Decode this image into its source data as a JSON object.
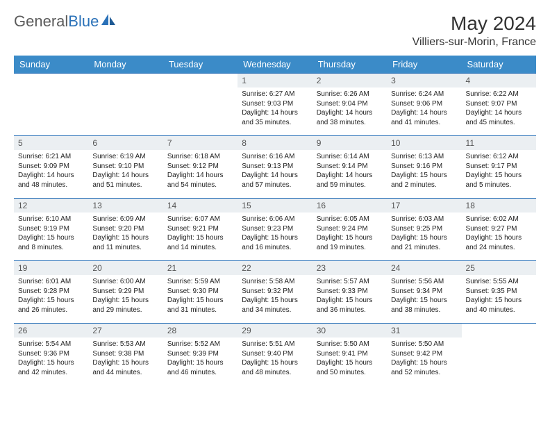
{
  "brand": {
    "part1": "General",
    "part2": "Blue"
  },
  "title": "May 2024",
  "location": "Villiers-sur-Morin, France",
  "colors": {
    "header_bg": "#3b8bc8",
    "header_text": "#ffffff",
    "daynum_bg": "#ebeff2",
    "border": "#2a71b8",
    "logo_gray": "#5b5b5b",
    "logo_blue": "#2a71b8"
  },
  "weekdays": [
    "Sunday",
    "Monday",
    "Tuesday",
    "Wednesday",
    "Thursday",
    "Friday",
    "Saturday"
  ],
  "weeks": [
    [
      {
        "day": "",
        "lines": [
          "",
          "",
          "",
          ""
        ]
      },
      {
        "day": "",
        "lines": [
          "",
          "",
          "",
          ""
        ]
      },
      {
        "day": "",
        "lines": [
          "",
          "",
          "",
          ""
        ]
      },
      {
        "day": "1",
        "lines": [
          "Sunrise: 6:27 AM",
          "Sunset: 9:03 PM",
          "Daylight: 14 hours",
          "and 35 minutes."
        ]
      },
      {
        "day": "2",
        "lines": [
          "Sunrise: 6:26 AM",
          "Sunset: 9:04 PM",
          "Daylight: 14 hours",
          "and 38 minutes."
        ]
      },
      {
        "day": "3",
        "lines": [
          "Sunrise: 6:24 AM",
          "Sunset: 9:06 PM",
          "Daylight: 14 hours",
          "and 41 minutes."
        ]
      },
      {
        "day": "4",
        "lines": [
          "Sunrise: 6:22 AM",
          "Sunset: 9:07 PM",
          "Daylight: 14 hours",
          "and 45 minutes."
        ]
      }
    ],
    [
      {
        "day": "5",
        "lines": [
          "Sunrise: 6:21 AM",
          "Sunset: 9:09 PM",
          "Daylight: 14 hours",
          "and 48 minutes."
        ]
      },
      {
        "day": "6",
        "lines": [
          "Sunrise: 6:19 AM",
          "Sunset: 9:10 PM",
          "Daylight: 14 hours",
          "and 51 minutes."
        ]
      },
      {
        "day": "7",
        "lines": [
          "Sunrise: 6:18 AM",
          "Sunset: 9:12 PM",
          "Daylight: 14 hours",
          "and 54 minutes."
        ]
      },
      {
        "day": "8",
        "lines": [
          "Sunrise: 6:16 AM",
          "Sunset: 9:13 PM",
          "Daylight: 14 hours",
          "and 57 minutes."
        ]
      },
      {
        "day": "9",
        "lines": [
          "Sunrise: 6:14 AM",
          "Sunset: 9:14 PM",
          "Daylight: 14 hours",
          "and 59 minutes."
        ]
      },
      {
        "day": "10",
        "lines": [
          "Sunrise: 6:13 AM",
          "Sunset: 9:16 PM",
          "Daylight: 15 hours",
          "and 2 minutes."
        ]
      },
      {
        "day": "11",
        "lines": [
          "Sunrise: 6:12 AM",
          "Sunset: 9:17 PM",
          "Daylight: 15 hours",
          "and 5 minutes."
        ]
      }
    ],
    [
      {
        "day": "12",
        "lines": [
          "Sunrise: 6:10 AM",
          "Sunset: 9:19 PM",
          "Daylight: 15 hours",
          "and 8 minutes."
        ]
      },
      {
        "day": "13",
        "lines": [
          "Sunrise: 6:09 AM",
          "Sunset: 9:20 PM",
          "Daylight: 15 hours",
          "and 11 minutes."
        ]
      },
      {
        "day": "14",
        "lines": [
          "Sunrise: 6:07 AM",
          "Sunset: 9:21 PM",
          "Daylight: 15 hours",
          "and 14 minutes."
        ]
      },
      {
        "day": "15",
        "lines": [
          "Sunrise: 6:06 AM",
          "Sunset: 9:23 PM",
          "Daylight: 15 hours",
          "and 16 minutes."
        ]
      },
      {
        "day": "16",
        "lines": [
          "Sunrise: 6:05 AM",
          "Sunset: 9:24 PM",
          "Daylight: 15 hours",
          "and 19 minutes."
        ]
      },
      {
        "day": "17",
        "lines": [
          "Sunrise: 6:03 AM",
          "Sunset: 9:25 PM",
          "Daylight: 15 hours",
          "and 21 minutes."
        ]
      },
      {
        "day": "18",
        "lines": [
          "Sunrise: 6:02 AM",
          "Sunset: 9:27 PM",
          "Daylight: 15 hours",
          "and 24 minutes."
        ]
      }
    ],
    [
      {
        "day": "19",
        "lines": [
          "Sunrise: 6:01 AM",
          "Sunset: 9:28 PM",
          "Daylight: 15 hours",
          "and 26 minutes."
        ]
      },
      {
        "day": "20",
        "lines": [
          "Sunrise: 6:00 AM",
          "Sunset: 9:29 PM",
          "Daylight: 15 hours",
          "and 29 minutes."
        ]
      },
      {
        "day": "21",
        "lines": [
          "Sunrise: 5:59 AM",
          "Sunset: 9:30 PM",
          "Daylight: 15 hours",
          "and 31 minutes."
        ]
      },
      {
        "day": "22",
        "lines": [
          "Sunrise: 5:58 AM",
          "Sunset: 9:32 PM",
          "Daylight: 15 hours",
          "and 34 minutes."
        ]
      },
      {
        "day": "23",
        "lines": [
          "Sunrise: 5:57 AM",
          "Sunset: 9:33 PM",
          "Daylight: 15 hours",
          "and 36 minutes."
        ]
      },
      {
        "day": "24",
        "lines": [
          "Sunrise: 5:56 AM",
          "Sunset: 9:34 PM",
          "Daylight: 15 hours",
          "and 38 minutes."
        ]
      },
      {
        "day": "25",
        "lines": [
          "Sunrise: 5:55 AM",
          "Sunset: 9:35 PM",
          "Daylight: 15 hours",
          "and 40 minutes."
        ]
      }
    ],
    [
      {
        "day": "26",
        "lines": [
          "Sunrise: 5:54 AM",
          "Sunset: 9:36 PM",
          "Daylight: 15 hours",
          "and 42 minutes."
        ]
      },
      {
        "day": "27",
        "lines": [
          "Sunrise: 5:53 AM",
          "Sunset: 9:38 PM",
          "Daylight: 15 hours",
          "and 44 minutes."
        ]
      },
      {
        "day": "28",
        "lines": [
          "Sunrise: 5:52 AM",
          "Sunset: 9:39 PM",
          "Daylight: 15 hours",
          "and 46 minutes."
        ]
      },
      {
        "day": "29",
        "lines": [
          "Sunrise: 5:51 AM",
          "Sunset: 9:40 PM",
          "Daylight: 15 hours",
          "and 48 minutes."
        ]
      },
      {
        "day": "30",
        "lines": [
          "Sunrise: 5:50 AM",
          "Sunset: 9:41 PM",
          "Daylight: 15 hours",
          "and 50 minutes."
        ]
      },
      {
        "day": "31",
        "lines": [
          "Sunrise: 5:50 AM",
          "Sunset: 9:42 PM",
          "Daylight: 15 hours",
          "and 52 minutes."
        ]
      },
      {
        "day": "",
        "lines": [
          "",
          "",
          "",
          ""
        ]
      }
    ]
  ]
}
